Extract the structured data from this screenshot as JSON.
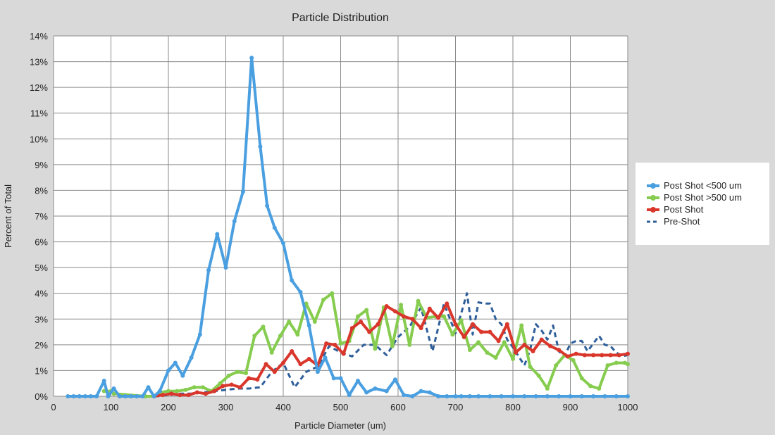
{
  "chart_data": {
    "type": "line",
    "title": "Particle Distribution",
    "xlabel": "Particle Diameter (um)",
    "ylabel": "Percent of Total",
    "xlim": [
      0,
      1000
    ],
    "ylim": [
      0,
      14
    ],
    "x_ticks": [
      "0",
      "100",
      "200",
      "300",
      "400",
      "500",
      "600",
      "700",
      "800",
      "900",
      "1000"
    ],
    "y_ticks": [
      "0%",
      "1%",
      "2%",
      "3%",
      "4%",
      "5%",
      "6%",
      "7%",
      "8%",
      "9%",
      "10%",
      "11%",
      "12%",
      "13%",
      "14%"
    ],
    "grid": true,
    "legend_position": "right",
    "series": [
      {
        "name": "Post Shot <500 um",
        "color": "#4a9fe0",
        "style": "solid-markers",
        "x": [
          25,
          35,
          45,
          55,
          65,
          75,
          88,
          95,
          105,
          115,
          125,
          135,
          145,
          155,
          165,
          175,
          185,
          200,
          212,
          225,
          240,
          255,
          270,
          285,
          300,
          315,
          330,
          345,
          360,
          372,
          385,
          400,
          415,
          430,
          445,
          460,
          473,
          488,
          500,
          515,
          530,
          545,
          560,
          580,
          595,
          610,
          625,
          640,
          655,
          670,
          685,
          700,
          710,
          725,
          740,
          760,
          780,
          800,
          820,
          840,
          860,
          880,
          900,
          920,
          940,
          960,
          980,
          1000
        ],
        "y": [
          0,
          0,
          0,
          0,
          0,
          0,
          0.6,
          0,
          0.3,
          0,
          0,
          0,
          0,
          0,
          0.35,
          0,
          0.2,
          1.0,
          1.3,
          0.8,
          1.5,
          2.4,
          4.9,
          6.3,
          5.0,
          6.8,
          7.95,
          13.15,
          9.7,
          7.4,
          6.55,
          5.95,
          4.5,
          4.05,
          2.75,
          0.95,
          1.5,
          0.7,
          0.7,
          0.05,
          0.6,
          0.15,
          0.3,
          0.2,
          0.65,
          0.05,
          0,
          0.2,
          0.15,
          0,
          0,
          0,
          0,
          0,
          0,
          0,
          0,
          0,
          0,
          0,
          0,
          0,
          0,
          0,
          0,
          0,
          0,
          0
        ]
      },
      {
        "name": "Post Shot >500 um",
        "color": "#86cc4f",
        "style": "solid-markers",
        "x": [
          88,
          100,
          105,
          160,
          175,
          185,
          200,
          215,
          230,
          245,
          260,
          275,
          290,
          305,
          320,
          335,
          350,
          365,
          380,
          395,
          410,
          425,
          440,
          455,
          470,
          485,
          500,
          515,
          530,
          545,
          560,
          575,
          590,
          605,
          620,
          635,
          650,
          665,
          680,
          695,
          710,
          725,
          740,
          755,
          770,
          785,
          800,
          815,
          830,
          845,
          860,
          875,
          890,
          905,
          920,
          935,
          950,
          965,
          980,
          995,
          1000
        ],
        "y": [
          0.2,
          0.2,
          0.1,
          0,
          0,
          0.15,
          0.2,
          0.2,
          0.25,
          0.35,
          0.35,
          0.2,
          0.5,
          0.8,
          0.95,
          0.9,
          2.35,
          2.7,
          1.7,
          2.35,
          2.9,
          2.4,
          3.6,
          2.9,
          3.75,
          4.0,
          2.05,
          2.15,
          3.1,
          3.35,
          1.85,
          3.45,
          1.95,
          3.55,
          2.0,
          3.7,
          3.05,
          3.1,
          3.1,
          2.4,
          2.95,
          1.8,
          2.1,
          1.7,
          1.5,
          2.1,
          1.45,
          2.75,
          1.15,
          0.8,
          0.3,
          1.2,
          1.6,
          1.4,
          0.7,
          0.4,
          0.3,
          1.2,
          1.3,
          1.3,
          1.25
        ]
      },
      {
        "name": "Post Shot",
        "color": "#d9362c",
        "style": "solid-markers",
        "x": [
          175,
          190,
          205,
          220,
          235,
          250,
          265,
          280,
          295,
          310,
          325,
          340,
          355,
          370,
          385,
          400,
          415,
          430,
          445,
          460,
          475,
          490,
          505,
          520,
          535,
          550,
          565,
          580,
          595,
          610,
          625,
          640,
          655,
          670,
          685,
          700,
          715,
          730,
          745,
          760,
          775,
          790,
          805,
          820,
          835,
          850,
          865,
          880,
          895,
          910,
          925,
          940,
          955,
          970,
          985,
          1000
        ],
        "y": [
          0,
          0.05,
          0.1,
          0.05,
          0.05,
          0.15,
          0.1,
          0.2,
          0.4,
          0.45,
          0.35,
          0.7,
          0.65,
          1.25,
          0.95,
          1.3,
          1.75,
          1.25,
          1.45,
          1.2,
          2.05,
          2.0,
          1.65,
          2.65,
          2.9,
          2.5,
          2.8,
          3.5,
          3.3,
          3.1,
          3.0,
          2.65,
          3.4,
          3.05,
          3.6,
          2.8,
          2.3,
          2.8,
          2.5,
          2.5,
          2.15,
          2.8,
          1.7,
          2.0,
          1.75,
          2.2,
          1.95,
          1.8,
          1.55,
          1.65,
          1.6,
          1.6,
          1.6,
          1.6,
          1.6,
          1.65
        ]
      },
      {
        "name": "Pre-Shot",
        "color": "#2f5f9a",
        "style": "dashed",
        "x": [
          160,
          180,
          200,
          220,
          240,
          260,
          280,
          300,
          320,
          340,
          360,
          380,
          400,
          420,
          440,
          460,
          480,
          500,
          520,
          540,
          560,
          580,
          600,
          620,
          640,
          660,
          680,
          700,
          720,
          730,
          740,
          750,
          760,
          770,
          780,
          790,
          800,
          810,
          820,
          830,
          840,
          850,
          860,
          870,
          880,
          890,
          900,
          910,
          920,
          930,
          940,
          950,
          960,
          970,
          980,
          990,
          1000
        ],
        "y": [
          0,
          0,
          0.05,
          0.1,
          0.1,
          0.15,
          0.2,
          0.25,
          0.3,
          0.3,
          0.35,
          0.95,
          1.3,
          0.35,
          0.95,
          1.15,
          1.95,
          1.7,
          1.55,
          2.0,
          2.0,
          1.6,
          2.3,
          2.7,
          3.45,
          1.75,
          3.6,
          2.45,
          4.0,
          2.4,
          3.65,
          3.6,
          3.6,
          3.0,
          2.8,
          2.2,
          1.9,
          1.55,
          1.2,
          1.8,
          2.8,
          2.55,
          2.2,
          2.75,
          1.75,
          1.55,
          2.05,
          2.15,
          2.15,
          1.75,
          2.05,
          2.35,
          2.0,
          1.95,
          1.7,
          1.55,
          1.6
        ]
      }
    ]
  }
}
